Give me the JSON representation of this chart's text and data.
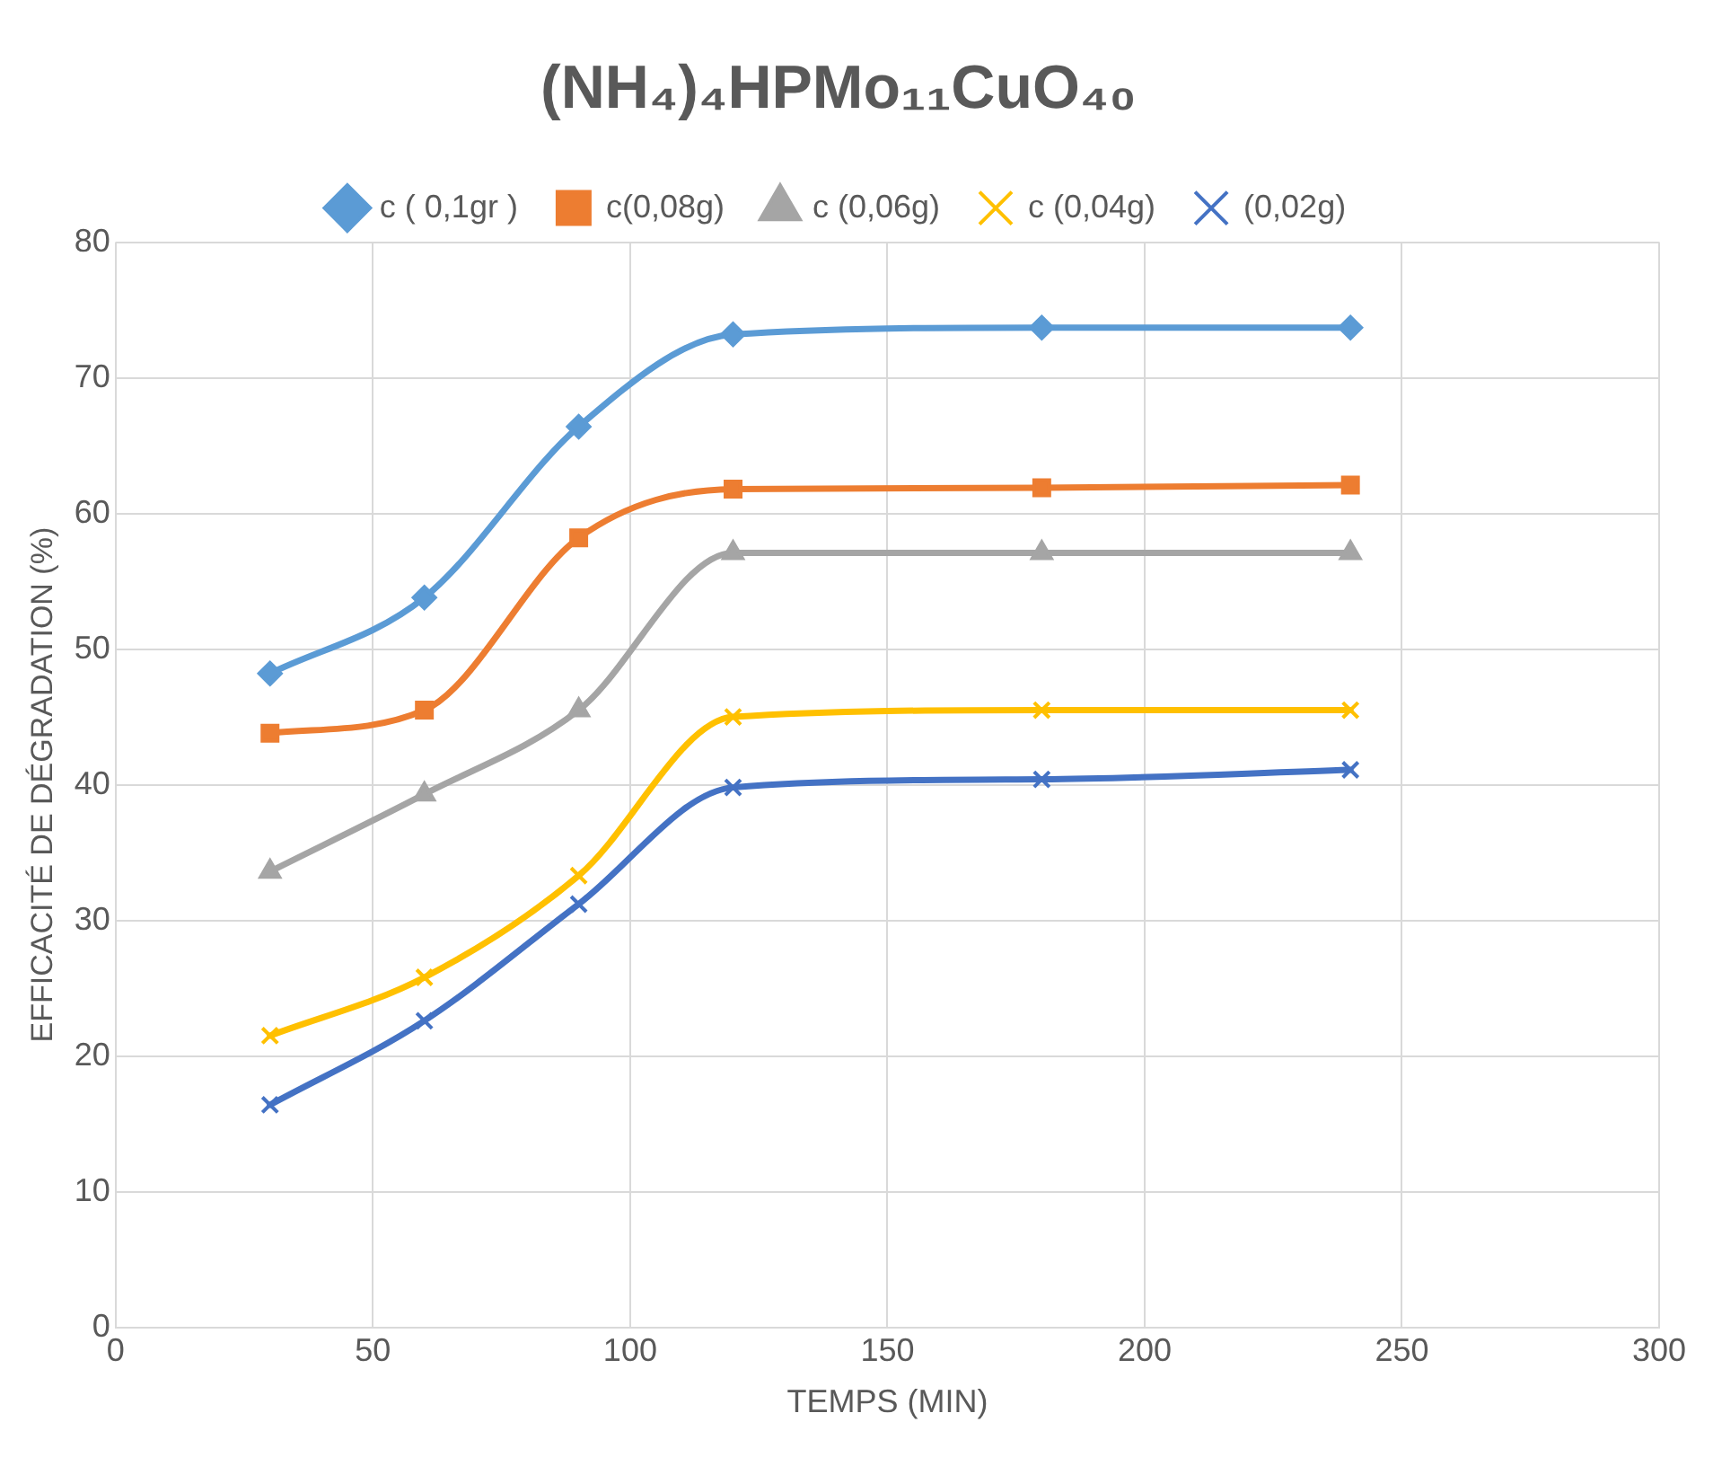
{
  "chart_data": {
    "type": "line",
    "title": "(NH₄)₄HPMo₁₁CuO₄₀",
    "xlabel": "TEMPS (MIN)",
    "ylabel": "EFFICACITÉ DE DÉGRADATION (%)",
    "x": [
      30,
      60,
      90,
      120,
      180,
      240
    ],
    "series": [
      {
        "name": "c ( 0,1gr )",
        "color": "#5b9bd5",
        "marker": "diamond",
        "values": [
          48.2,
          53.8,
          66.4,
          73.2,
          73.7,
          73.7
        ]
      },
      {
        "name": "c(0,08g)",
        "color": "#ed7d31",
        "marker": "square",
        "values": [
          43.8,
          45.5,
          58.2,
          61.8,
          61.9,
          62.1
        ]
      },
      {
        "name": "c (0,06g)",
        "color": "#a5a5a5",
        "marker": "triangle",
        "values": [
          33.6,
          39.3,
          45.5,
          57.1,
          57.1,
          57.1
        ]
      },
      {
        "name": "c (0,04g)",
        "color": "#ffc000",
        "marker": "cross",
        "values": [
          21.5,
          25.8,
          33.3,
          45.0,
          45.5,
          45.5
        ]
      },
      {
        "name": "(0,02g)",
        "color": "#4472c4",
        "marker": "cross",
        "values": [
          16.4,
          22.6,
          31.2,
          39.8,
          40.4,
          41.1
        ]
      }
    ],
    "xlim": [
      0,
      300
    ],
    "xticks": [
      0,
      50,
      100,
      150,
      200,
      250,
      300
    ],
    "ylim": [
      0,
      80
    ],
    "yticks": [
      0,
      10,
      20,
      30,
      40,
      50,
      60,
      70,
      80
    ],
    "grid": true,
    "legend": "top",
    "line_style": "solid"
  }
}
